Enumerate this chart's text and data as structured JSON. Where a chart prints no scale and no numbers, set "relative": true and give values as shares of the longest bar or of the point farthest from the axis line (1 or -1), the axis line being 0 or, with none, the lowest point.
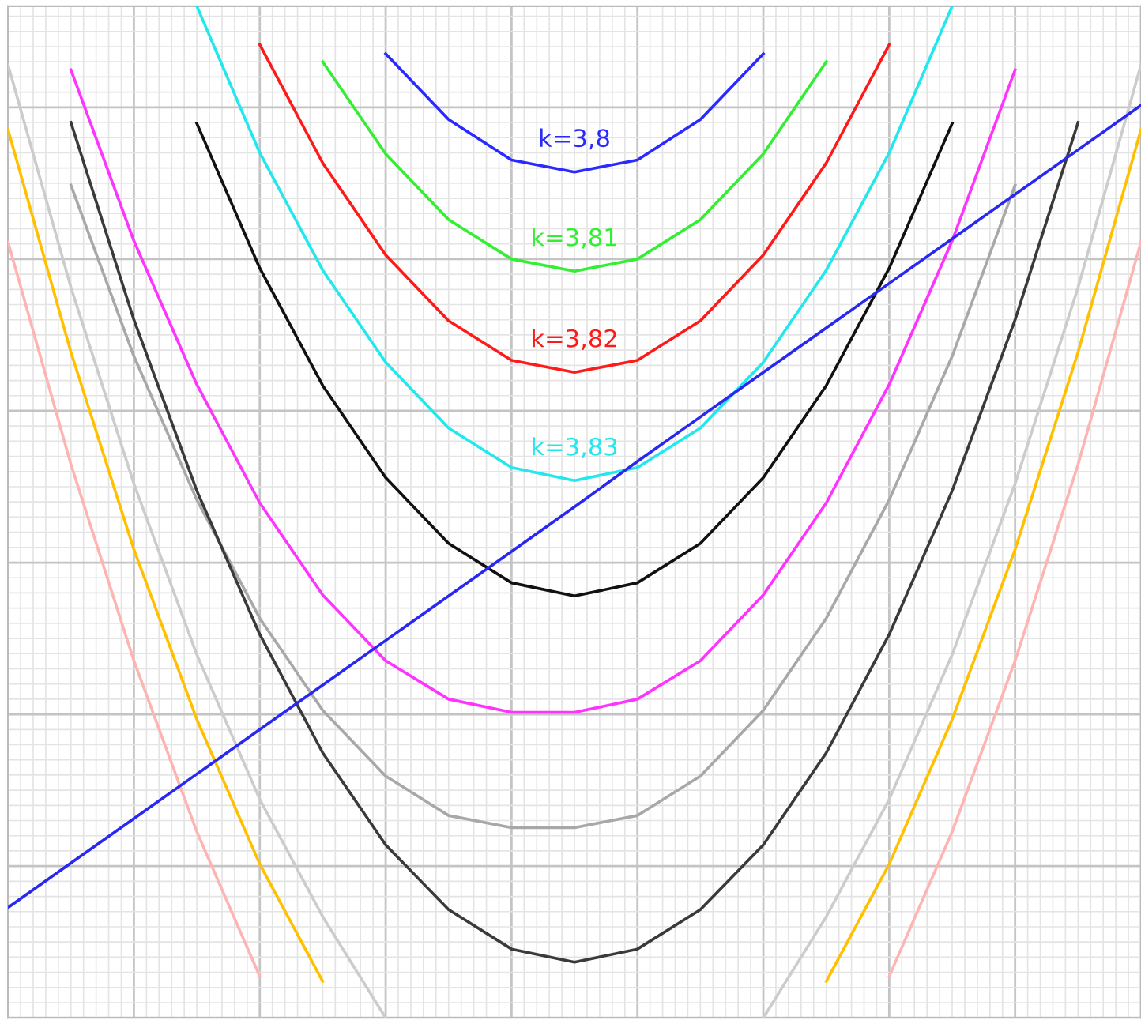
{
  "chart_data": {
    "type": "line",
    "relative": true,
    "grid": true,
    "marker": "none",
    "line_style": "solid",
    "categories": [
      null,
      null,
      null,
      null,
      null,
      null,
      null,
      null,
      null,
      null,
      null,
      null,
      null,
      null,
      null,
      null,
      null,
      null,
      null
    ],
    "series": [
      {
        "name": "k=3,8",
        "color": "#2a2aff",
        "values": [
          null,
          null,
          null,
          null,
          null,
          null,
          0.953,
          0.888,
          0.848,
          0.836,
          0.848,
          0.888,
          0.953,
          null,
          null,
          null,
          null,
          null,
          null
        ]
      },
      {
        "name": "k=3,81",
        "color": "#33ee33",
        "values": [
          null,
          null,
          null,
          null,
          null,
          0.945,
          0.854,
          0.789,
          0.75,
          0.738,
          0.75,
          0.789,
          0.854,
          0.945,
          null,
          null,
          null,
          null,
          null
        ]
      },
      {
        "name": "k=3,82",
        "color": "#ff1a1a",
        "values": [
          null,
          null,
          null,
          null,
          0.962,
          0.845,
          0.754,
          0.689,
          0.65,
          0.638,
          0.65,
          0.689,
          0.754,
          0.845,
          0.962,
          null,
          null,
          null,
          null
        ]
      },
      {
        "name": "k=3,83",
        "color": "#22e8ee",
        "values": [
          null,
          null,
          null,
          1,
          0.855,
          0.739,
          0.648,
          0.583,
          0.544,
          0.531,
          0.544,
          0.583,
          0.648,
          0.739,
          0.855,
          1,
          null,
          null,
          null
        ]
      },
      {
        "color": "#111111",
        "values": [
          null,
          null,
          null,
          0.884,
          0.741,
          0.625,
          0.534,
          0.469,
          0.43,
          0.417,
          0.43,
          0.469,
          0.534,
          0.625,
          0.741,
          0.884,
          null,
          null,
          null
        ]
      },
      {
        "color": "#ff33ff",
        "values": [
          null,
          0.937,
          0.768,
          0.626,
          0.509,
          0.418,
          0.353,
          0.315,
          0.302,
          0.302,
          0.315,
          0.353,
          0.418,
          0.509,
          0.626,
          0.768,
          0.937,
          null,
          null
        ]
      },
      {
        "color": "#a8a8a8",
        "values": [
          null,
          0.823,
          0.654,
          0.512,
          0.395,
          0.304,
          0.239,
          0.2,
          0.188,
          0.188,
          0.2,
          0.239,
          0.304,
          0.395,
          0.512,
          0.654,
          0.823,
          null,
          null
        ]
      },
      {
        "color": "#3a3a3a",
        "values": [
          null,
          0.885,
          0.69,
          0.521,
          0.379,
          0.262,
          0.171,
          0.107,
          0.068,
          0.055,
          0.068,
          0.107,
          0.171,
          0.262,
          0.379,
          0.521,
          0.69,
          0.885,
          null
        ]
      },
      {
        "color": "#cccccc",
        "values": [
          0.942,
          0.722,
          0.528,
          0.359,
          0.216,
          0.1,
          0,
          null,
          null,
          null,
          null,
          null,
          0,
          0.1,
          0.216,
          0.359,
          0.528,
          0.722,
          0.942
        ]
      },
      {
        "color": "#ffc000",
        "values": [
          0.878,
          0.658,
          0.463,
          0.295,
          0.152,
          0.036,
          null,
          null,
          null,
          null,
          null,
          null,
          null,
          0.036,
          0.152,
          0.295,
          0.463,
          0.658,
          0.878
        ]
      },
      {
        "color": "#ffb4b4",
        "values": [
          0.767,
          0.547,
          0.353,
          0.184,
          0.041,
          null,
          null,
          null,
          null,
          null,
          null,
          null,
          null,
          null,
          0.041,
          0.184,
          0.353,
          0.547,
          0.767
        ]
      },
      {
        "color": "#2828f0",
        "values": [
          0.109,
          0.153,
          0.197,
          0.241,
          0.285,
          0.329,
          0.373,
          0.417,
          0.461,
          0.505,
          0.55,
          0.594,
          0.638,
          0.682,
          0.726,
          0.77,
          0.814,
          0.858,
          0.902
        ]
      }
    ]
  }
}
